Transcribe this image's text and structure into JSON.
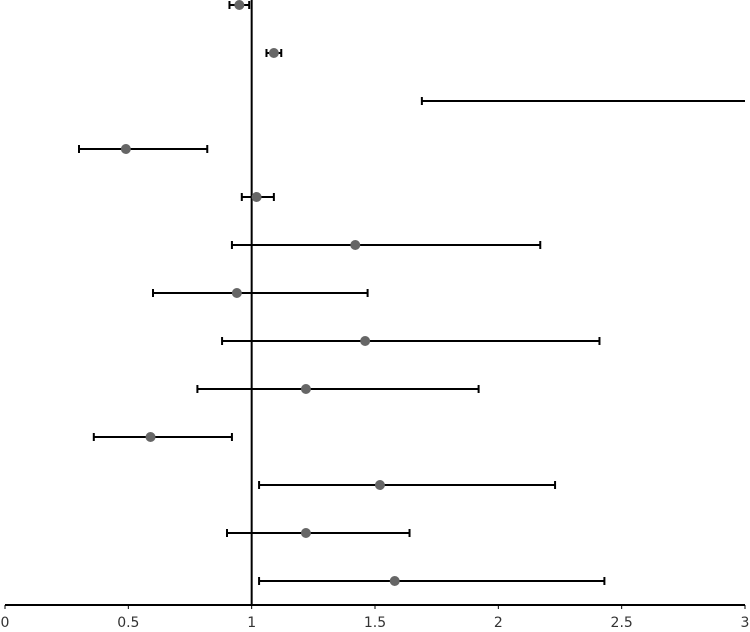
{
  "chart_data": {
    "type": "errorbar",
    "orientation": "horizontal",
    "values": [
      0.95,
      1.09,
      null,
      0.49,
      1.02,
      1.42,
      0.94,
      1.46,
      1.22,
      0.59,
      1.52,
      1.22,
      1.58
    ],
    "lower": [
      0.91,
      1.06,
      1.69,
      0.3,
      0.96,
      0.92,
      0.6,
      0.88,
      0.78,
      0.36,
      1.03,
      0.9,
      1.03
    ],
    "upper": [
      0.99,
      1.12,
      3.0,
      0.82,
      1.09,
      2.17,
      1.47,
      2.41,
      1.92,
      0.92,
      2.23,
      1.64,
      2.43
    ],
    "color": "#666666",
    "xlim": [
      0,
      3
    ],
    "xticks": [
      0,
      0.5,
      1,
      1.5,
      2,
      2.5,
      3
    ],
    "reference_line": 1
  }
}
